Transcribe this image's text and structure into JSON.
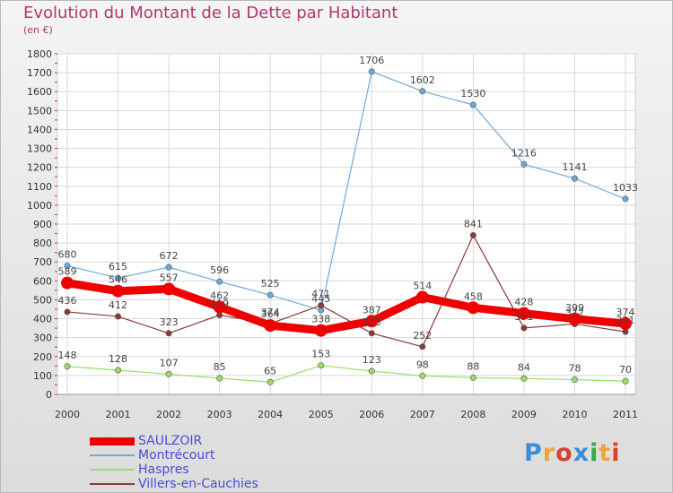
{
  "title": "Evolution du Montant de la Dette par Habitant",
  "unit_label": "(en €)",
  "logo": {
    "text": "Proxiti",
    "letters": [
      {
        "ch": "P",
        "color": "#3a8fd6"
      },
      {
        "ch": "r",
        "color": "#f0a43b"
      },
      {
        "ch": "o",
        "color": "#d2452f"
      },
      {
        "ch": "x",
        "color": "#3a8fd6"
      },
      {
        "ch": "i",
        "color": "#3aa84a"
      },
      {
        "ch": "t",
        "color": "#f0a43b"
      },
      {
        "ch": "i",
        "color": "#d2452f"
      }
    ]
  },
  "chart_data": {
    "type": "line",
    "x": [
      2000,
      2001,
      2002,
      2003,
      2004,
      2005,
      2006,
      2007,
      2008,
      2009,
      2010,
      2011
    ],
    "ylim": [
      0,
      1800
    ],
    "yticks": [
      0,
      100,
      200,
      300,
      400,
      500,
      600,
      700,
      800,
      900,
      1000,
      1100,
      1200,
      1300,
      1400,
      1500,
      1600,
      1700,
      1800
    ],
    "grid": true,
    "legend": "bottom-left",
    "series": [
      {
        "name": "SAULZOIR",
        "color": "#ee0000",
        "width": 9,
        "values": [
          589,
          546,
          557,
          462,
          364,
          338,
          387,
          514,
          458,
          428,
          399,
          374
        ]
      },
      {
        "name": "Montrécourt",
        "color": "#6fa8dc",
        "width": 1.2,
        "values": [
          680,
          615,
          672,
          596,
          525,
          445,
          1706,
          1602,
          1530,
          1216,
          1141,
          1033
        ]
      },
      {
        "name": "Haspres",
        "color": "#99dd66",
        "width": 1.2,
        "values": [
          148,
          128,
          107,
          85,
          65,
          153,
          123,
          98,
          88,
          84,
          78,
          70
        ]
      },
      {
        "name": "Villers-en-Cauchies",
        "color": "#8b3a3a",
        "width": 1.2,
        "values": [
          436,
          412,
          323,
          419,
          374,
          471,
          323,
          252,
          841,
          351,
          372,
          331
        ]
      }
    ]
  }
}
